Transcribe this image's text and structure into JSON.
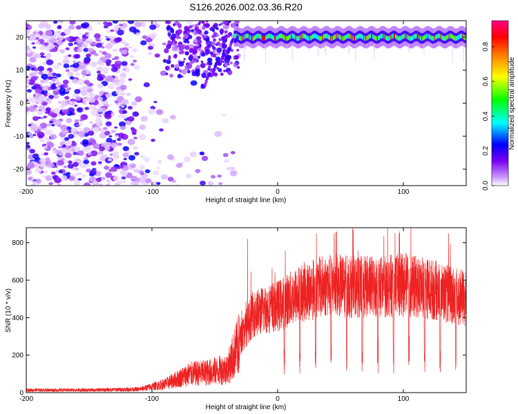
{
  "figure": {
    "title": "S126.2026.002.03.36.R20"
  },
  "chart_data": [
    {
      "type": "heatmap",
      "title": "S126.2026.002.03.36.R20",
      "xlabel": "Height of straight line (km)",
      "ylabel": "Frequency (Hz)",
      "xlim": [
        -200,
        150
      ],
      "ylim": [
        -25,
        25
      ],
      "x_ticks": [
        -200,
        -100,
        0,
        100
      ],
      "y_ticks": [
        20,
        10,
        0,
        -10,
        -20
      ],
      "colorbar": {
        "label": "Normalized spectral amplitude",
        "range": [
          0.0,
          0.95
        ],
        "ticks": [
          "0.0",
          "0.2",
          "0.4",
          "0.6",
          "0.8"
        ],
        "colormap": [
          "#ffffff",
          "#cc99ff",
          "#7700ee",
          "#0000ff",
          "#00ffff",
          "#00ff00",
          "#ffff00",
          "#ff8800",
          "#ff0000",
          "#ff0088"
        ]
      },
      "features": {
        "scatter_region_x": [
          -200,
          -35
        ],
        "band_x": [
          -35,
          150
        ],
        "band_frequency_hz": 20,
        "band_peak_amplitude": 0.9
      }
    },
    {
      "type": "line",
      "xlabel": "Height of straight line (km)",
      "ylabel": "SNR (10 * v/v)",
      "xlim": [
        -200,
        150
      ],
      "ylim": [
        0,
        880
      ],
      "x_ticks": [
        -200,
        -100,
        0,
        100
      ],
      "y_ticks": [
        0,
        200,
        400,
        600,
        800
      ],
      "line_color": "#ee2222",
      "series_profile": {
        "x": [
          -200,
          -150,
          -110,
          -90,
          -70,
          -55,
          -40,
          -30,
          -20,
          -10,
          0,
          10,
          20,
          40,
          60,
          80,
          100,
          120,
          140,
          150
        ],
        "y": [
          15,
          15,
          20,
          50,
          110,
          120,
          140,
          300,
          450,
          480,
          500,
          540,
          580,
          620,
          610,
          610,
          620,
          600,
          560,
          540
        ]
      },
      "peaks": [
        {
          "x": -24,
          "y": 820
        },
        {
          "x": 45,
          "y": 850
        },
        {
          "x": 97,
          "y": 860
        },
        {
          "x": 106,
          "y": 880
        },
        {
          "x": 136,
          "y": 850
        }
      ]
    }
  ]
}
